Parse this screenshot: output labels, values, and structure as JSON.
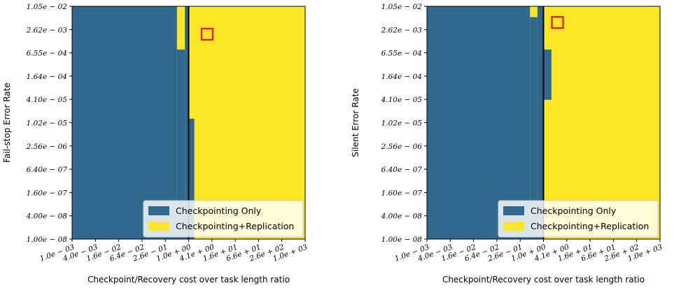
{
  "colors": {
    "checkpointing_only": "#31688e",
    "checkpointing_replication": "#fde725",
    "threshold_line": "#000000",
    "marker": "#e8141b"
  },
  "chart_data": [
    {
      "type": "heatmap",
      "xlabel": "Checkpoint/Recovery cost over task length ratio",
      "ylabel": "Fail-stop Error Rate",
      "x_scale": "log",
      "y_scale": "log",
      "xlim": [
        0.001,
        1000
      ],
      "ylim": [
        1e-08,
        0.0105
      ],
      "x_ticks": [
        "1.0e − 03",
        "4.0e − 03",
        "1.6e − 02",
        "6.4e − 02",
        "2.6e − 01",
        "1.0e + 00",
        "4.1e + 00",
        "1.6e + 01",
        "6.6e + 01",
        "2.6e + 02",
        "1.0e + 03"
      ],
      "y_ticks": [
        "1.05e − 02",
        "2.62e − 03",
        "6.55e − 04",
        "1.64e − 04",
        "4.10e − 05",
        "1.02e − 05",
        "2.56e − 06",
        "6.40e − 07",
        "1.60e − 07",
        "4.00e − 08",
        "1.00e − 08"
      ],
      "legend": {
        "location": "lower-right",
        "entries": [
          "Checkpointing Only",
          "Checkpointing+Replication"
        ]
      },
      "regions": [
        {
          "class": "Checkpointing Only",
          "x_from": 0.001,
          "x_to": 0.5,
          "y_from": 1e-08,
          "y_to": 0.0105
        },
        {
          "class": "Checkpointing Only",
          "x_from": 0.5,
          "x_to": 0.8,
          "y_from": 1e-08,
          "y_to": 0.0008
        },
        {
          "class": "Checkpointing Only",
          "x_from": 0.8,
          "x_to": 1.0,
          "y_from": 1e-08,
          "y_to": 0.0105
        },
        {
          "class": "Checkpointing Only",
          "x_from": 1.0,
          "x_to": 1.4,
          "y_from": 1e-08,
          "y_to": 1.3e-05
        }
      ],
      "threshold_x": 1.0,
      "marker": {
        "x": 3.0,
        "y": 0.002
      }
    },
    {
      "type": "heatmap",
      "xlabel": "Checkpoint/Recovery cost over task length ratio",
      "ylabel": "Silent Error Rate",
      "x_scale": "log",
      "y_scale": "log",
      "xlim": [
        0.001,
        1000
      ],
      "ylim": [
        1e-08,
        0.0105
      ],
      "x_ticks": [
        "1.0e − 03",
        "4.0e − 03",
        "1.6e − 02",
        "6.4e − 02",
        "2.6e − 01",
        "1.0e + 00",
        "4.1e + 00",
        "1.6e + 01",
        "6.6e + 01",
        "2.6e + 02",
        "1.0e + 03"
      ],
      "y_ticks": [
        "1.05e − 02",
        "2.62e − 03",
        "6.55e − 04",
        "1.64e − 04",
        "4.10e − 05",
        "1.02e − 05",
        "2.56e − 06",
        "6.40e − 07",
        "1.60e − 07",
        "4.00e − 08",
        "1.00e − 08"
      ],
      "legend": {
        "location": "lower-right",
        "entries": [
          "Checkpointing Only",
          "Checkpointing+Replication"
        ]
      },
      "regions": [
        {
          "class": "Checkpointing Only",
          "x_from": 0.001,
          "x_to": 0.45,
          "y_from": 1e-08,
          "y_to": 0.0105
        },
        {
          "class": "Checkpointing Only",
          "x_from": 0.45,
          "x_to": 0.7,
          "y_from": 1e-08,
          "y_to": 0.0055
        },
        {
          "class": "Checkpointing Only",
          "x_from": 0.7,
          "x_to": 1.0,
          "y_from": 1e-08,
          "y_to": 0.0105
        },
        {
          "class": "Checkpointing Only",
          "x_from": 1.0,
          "x_to": 1.6,
          "y_from": 4e-05,
          "y_to": 0.0008
        }
      ],
      "threshold_x": 1.0,
      "marker": {
        "x": 2.3,
        "y": 0.004
      }
    }
  ]
}
